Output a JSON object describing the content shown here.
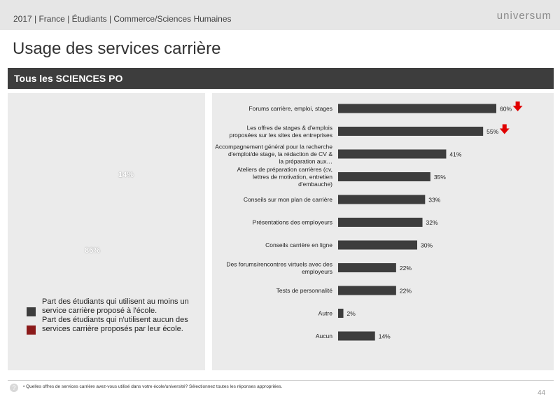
{
  "header": {
    "breadcrumb": "2017 | France | Étudiants | Commerce/Sciences Humaines",
    "logo": "universum"
  },
  "page_title": "Usage des services carrière",
  "section_title": "Tous les SCIENCES PO",
  "pie": {
    "labels": [
      "14%",
      "86%"
    ]
  },
  "legend": [
    {
      "text": "Part des étudiants qui utilisent au moins un service carrière proposé à l'école.",
      "color": "#3d3d3d"
    },
    {
      "text": "Part des étudiants qui n'utilisent aucun des services carrière proposés par leur école.",
      "color": "#8b1a1a"
    }
  ],
  "chart_data": {
    "type": "bar",
    "orientation": "horizontal",
    "categories": [
      "Forums carrière, emploi, stages",
      "Les offres de stages & d'emplois proposées sur les sites des entreprises",
      "Accompagnement général pour la recherche d'emploi/de stage, la rédaction de CV & la préparation aux…",
      "Ateliers de préparation carrières (cv, lettres de motivation, entretien d'embauche)",
      "Conseils sur mon plan de carrière",
      "Présentations des employeurs",
      "Conseils carrière en ligne",
      "Des forums/rencontres virtuels avec des employeurs",
      "Tests de personnalité",
      "Autre",
      "Aucun"
    ],
    "values": [
      60,
      55,
      41,
      35,
      33,
      32,
      30,
      22,
      22,
      2,
      14
    ],
    "value_labels": [
      "60%",
      "55%",
      "41%",
      "35%",
      "33%",
      "32%",
      "30%",
      "22%",
      "22%",
      "2%",
      "14%"
    ],
    "trend_down": [
      true,
      true,
      false,
      false,
      false,
      false,
      false,
      false,
      false,
      false,
      false
    ],
    "bar_color": "#3d3d3d",
    "arrow_color": "#e00000",
    "xlim": [
      0,
      100
    ]
  },
  "footer": {
    "help_icon": "?",
    "footnote": "• Quelles offres de services carrière avez-vous utilisé dans votre école/université? Sélectionnez toutes les réponses appropriées.",
    "page_number": "44"
  }
}
